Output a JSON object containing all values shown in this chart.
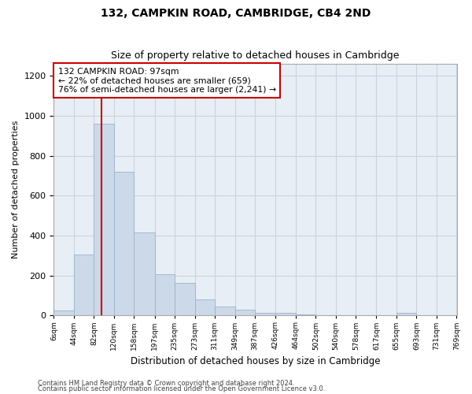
{
  "title": "132, CAMPKIN ROAD, CAMBRIDGE, CB4 2ND",
  "subtitle": "Size of property relative to detached houses in Cambridge",
  "xlabel": "Distribution of detached houses by size in Cambridge",
  "ylabel": "Number of detached properties",
  "annotation_line1": "132 CAMPKIN ROAD: 97sqm",
  "annotation_line2": "← 22% of detached houses are smaller (659)",
  "annotation_line3": "76% of semi-detached houses are larger (2,241) →",
  "footer1": "Contains HM Land Registry data © Crown copyright and database right 2024.",
  "footer2": "Contains public sector information licensed under the Open Government Licence v3.0.",
  "bar_color": "#ccd9e8",
  "bar_edge_color": "#9ab3cc",
  "vline_color": "#cc0000",
  "annotation_box_edgecolor": "#cc0000",
  "annotation_box_facecolor": "#ffffff",
  "background_color": "#ffffff",
  "axes_facecolor": "#e8eef5",
  "grid_color": "#c8d4e0",
  "bin_labels": [
    "6sqm",
    "44sqm",
    "82sqm",
    "120sqm",
    "158sqm",
    "197sqm",
    "235sqm",
    "273sqm",
    "311sqm",
    "349sqm",
    "387sqm",
    "426sqm",
    "464sqm",
    "502sqm",
    "540sqm",
    "578sqm",
    "617sqm",
    "655sqm",
    "693sqm",
    "731sqm",
    "769sqm"
  ],
  "bar_heights": [
    25,
    305,
    960,
    720,
    415,
    205,
    165,
    80,
    45,
    30,
    15,
    13,
    5,
    0,
    0,
    0,
    0,
    13,
    0,
    0
  ],
  "bin_edges": [
    6,
    44,
    82,
    120,
    158,
    197,
    235,
    273,
    311,
    349,
    387,
    426,
    464,
    502,
    540,
    578,
    617,
    655,
    693,
    731,
    769
  ],
  "ylim": [
    0,
    1260
  ],
  "yticks": [
    0,
    200,
    400,
    600,
    800,
    1000,
    1200
  ],
  "vline_x": 97
}
